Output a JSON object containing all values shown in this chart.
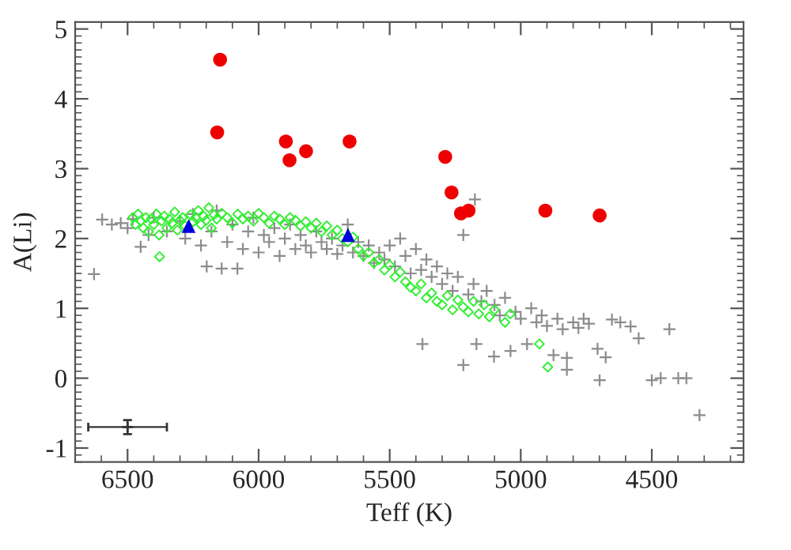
{
  "chart_data": {
    "type": "scatter",
    "xlabel": "Teff (K)",
    "ylabel": "A(Li)",
    "xlim": [
      6700,
      4150
    ],
    "ylim": [
      -1.2,
      5.1
    ],
    "xticks": [
      6500,
      6000,
      5500,
      5000,
      4500
    ],
    "yticks": [
      -1,
      0,
      1,
      2,
      3,
      4,
      5
    ],
    "grid": false,
    "legend": false,
    "series": [
      {
        "color": "#8c8c8c",
        "marker": "cross",
        "x": [
          6628,
          6597,
          6560,
          6526,
          6500,
          6480,
          6450,
          6420,
          6400,
          6350,
          6300,
          6280,
          6250,
          6220,
          6198,
          6180,
          6160,
          6141,
          6120,
          6100,
          6081,
          6060,
          6040,
          6020,
          6000,
          5980,
          5960,
          5940,
          5920,
          5900,
          5880,
          5860,
          5840,
          5820,
          5800,
          5780,
          5760,
          5740,
          5720,
          5700,
          5680,
          5660,
          5640,
          5620,
          5600,
          5580,
          5560,
          5540,
          5520,
          5500,
          5480,
          5460,
          5440,
          5420,
          5400,
          5375,
          5380,
          5360,
          5340,
          5320,
          5300,
          5280,
          5260,
          5240,
          5219,
          5219,
          5175,
          5200,
          5180,
          5169,
          5150,
          5130,
          5102,
          5100,
          5080,
          5060,
          5039,
          5020,
          5000,
          4976,
          4960,
          4940,
          4920,
          4900,
          4875,
          4860,
          4840,
          4824,
          4824,
          4800,
          4780,
          4760,
          4740,
          4707,
          4699,
          4676,
          4652,
          4620,
          4581,
          4550,
          4500,
          4466,
          4433,
          4399,
          4368,
          4318
        ],
        "values": [
          1.49,
          2.27,
          2.2,
          2.22,
          2.15,
          2.28,
          1.88,
          2.05,
          2.3,
          2.1,
          2.25,
          2.0,
          2.35,
          1.9,
          1.6,
          2.1,
          2.4,
          1.57,
          1.95,
          2.2,
          1.57,
          1.85,
          2.1,
          2.3,
          1.8,
          2.05,
          1.95,
          2.15,
          1.75,
          2.0,
          2.2,
          1.85,
          2.05,
          1.9,
          1.8,
          2.1,
          1.95,
          1.85,
          2.0,
          1.78,
          1.9,
          2.2,
          1.8,
          1.95,
          1.75,
          1.9,
          1.65,
          1.8,
          1.7,
          1.9,
          1.6,
          2.0,
          1.75,
          1.5,
          1.85,
          0.49,
          1.55,
          1.7,
          1.45,
          1.6,
          1.35,
          1.5,
          1.25,
          1.45,
          2.05,
          0.19,
          2.56,
          1.2,
          1.35,
          0.49,
          1.1,
          1.25,
          0.31,
          1.05,
          0.9,
          1.15,
          0.39,
          0.95,
          0.85,
          0.49,
          1.0,
          0.8,
          0.9,
          0.75,
          0.33,
          0.85,
          0.7,
          0.29,
          0.12,
          0.8,
          0.72,
          0.85,
          0.78,
          0.42,
          -0.03,
          0.3,
          0.84,
          0.8,
          0.74,
          0.57,
          -0.03,
          0.0,
          0.7,
          0.0,
          0.0,
          -0.53
        ]
      },
      {
        "color": "#33ee33",
        "marker": "diamond",
        "x": [
          6480,
          6470,
          6460,
          6450,
          6440,
          6430,
          6420,
          6410,
          6400,
          6390,
          6380,
          6378,
          6370,
          6360,
          6350,
          6340,
          6330,
          6320,
          6310,
          6300,
          6290,
          6280,
          6260,
          6250,
          6240,
          6230,
          6220,
          6210,
          6200,
          6190,
          6180,
          6170,
          6160,
          6140,
          6120,
          6100,
          6080,
          6060,
          6040,
          6020,
          6000,
          5980,
          5960,
          5940,
          5920,
          5900,
          5880,
          5860,
          5840,
          5820,
          5800,
          5780,
          5760,
          5740,
          5720,
          5700,
          5680,
          5660,
          5640,
          5620,
          5600,
          5580,
          5560,
          5540,
          5520,
          5500,
          5480,
          5460,
          5440,
          5420,
          5400,
          5380,
          5360,
          5340,
          5320,
          5300,
          5280,
          5260,
          5240,
          5220,
          5200,
          5180,
          5160,
          5140,
          5120,
          5100,
          5060,
          5040,
          4929,
          4897
        ],
        "values": [
          2.3,
          2.2,
          2.35,
          2.25,
          2.15,
          2.3,
          2.1,
          2.28,
          2.2,
          2.35,
          2.05,
          1.74,
          2.25,
          2.32,
          2.15,
          2.28,
          2.22,
          2.38,
          2.12,
          2.26,
          2.3,
          2.18,
          2.34,
          2.24,
          2.3,
          2.4,
          2.2,
          2.32,
          2.26,
          2.44,
          2.15,
          2.34,
          2.28,
          2.36,
          2.3,
          2.22,
          2.35,
          2.28,
          2.32,
          2.25,
          2.36,
          2.3,
          2.22,
          2.32,
          2.28,
          2.2,
          2.3,
          2.26,
          2.18,
          2.24,
          2.15,
          2.22,
          2.1,
          2.18,
          2.05,
          2.12,
          2.0,
          1.95,
          2.02,
          1.85,
          1.75,
          1.8,
          1.65,
          1.7,
          1.55,
          1.62,
          1.45,
          1.52,
          1.38,
          1.3,
          1.25,
          1.35,
          1.15,
          1.22,
          1.1,
          1.05,
          1.18,
          0.98,
          1.12,
          1.02,
          0.95,
          1.1,
          0.92,
          1.05,
          0.88,
          0.98,
          0.8,
          0.92,
          0.49,
          0.16
        ]
      },
      {
        "color": "#ee0000",
        "marker": "circle",
        "x": [
          6147,
          6158,
          5896,
          5882,
          5819,
          5653,
          5288,
          5264,
          5228,
          5199,
          4906,
          4699
        ],
        "values": [
          4.56,
          3.52,
          3.39,
          3.12,
          3.25,
          3.39,
          3.17,
          2.66,
          2.36,
          2.4,
          2.4,
          2.33
        ]
      },
      {
        "color": "#0000dd",
        "marker": "triangle",
        "x": [
          6267,
          5659
        ],
        "values": [
          2.18,
          2.05
        ]
      },
      {
        "color": "#333333",
        "marker": "cross",
        "x": [
          6500
        ],
        "values": [
          -0.7
        ],
        "errors": [
          0.1
        ],
        "xerrors": [
          150
        ]
      }
    ]
  }
}
